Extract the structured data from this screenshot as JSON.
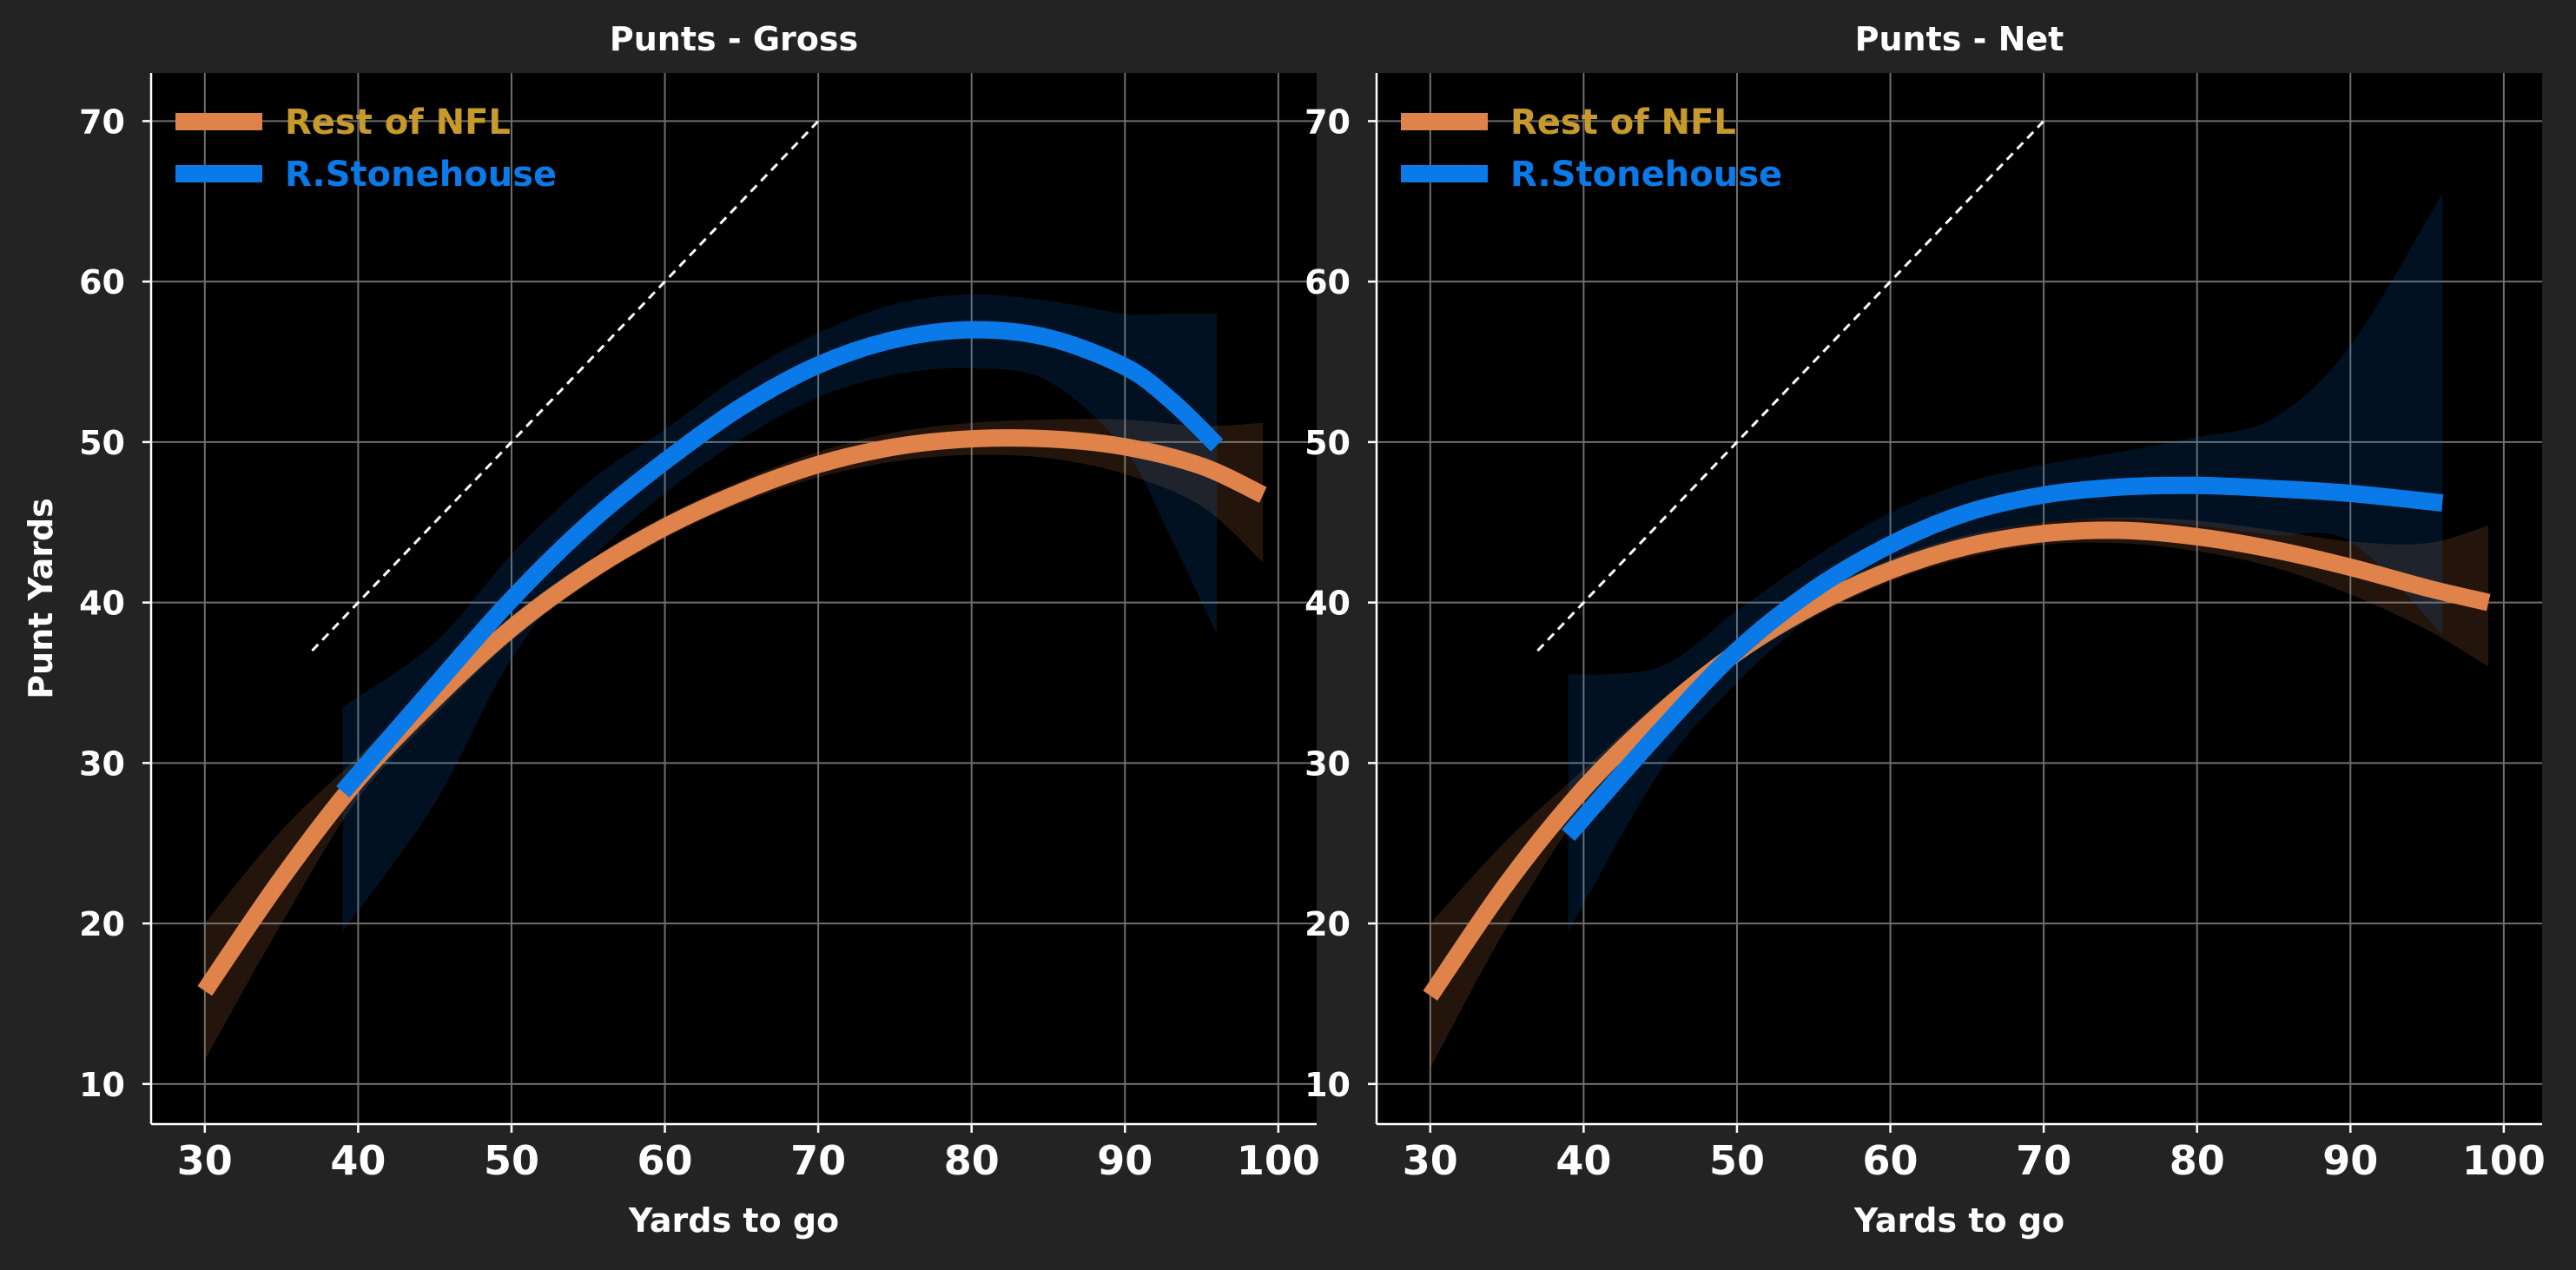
{
  "chart_data": [
    {
      "type": "line",
      "title": "Punts - Gross",
      "xlabel": "Yards to go",
      "ylabel": "Punt Yards",
      "xlim": [
        26.5,
        102.5
      ],
      "ylim": [
        7.5,
        73
      ],
      "xticks": [
        30,
        40,
        50,
        60,
        70,
        80,
        90,
        100
      ],
      "yticks": [
        10,
        20,
        30,
        40,
        50,
        60,
        70
      ],
      "grid": true,
      "legend_position": "top-left",
      "reference_line": {
        "x": [
          37,
          70
        ],
        "y": [
          37,
          70
        ]
      },
      "series": [
        {
          "name": "Rest of NFL",
          "color": "#e0834a",
          "label_color": "#c79a2b",
          "x": [
            30,
            35,
            40,
            45,
            50,
            55,
            60,
            65,
            70,
            75,
            80,
            85,
            90,
            95,
            99
          ],
          "y": [
            15.8,
            22.8,
            29.0,
            34.0,
            38.4,
            41.9,
            44.7,
            46.9,
            48.6,
            49.7,
            50.2,
            50.2,
            49.7,
            48.5,
            46.7
          ],
          "band_lower": [
            11.5,
            20.0,
            27.8,
            33.0,
            37.6,
            41.2,
            44.0,
            46.2,
            47.8,
            48.8,
            49.2,
            49.0,
            48.0,
            46.0,
            42.5
          ],
          "band_upper": [
            20.0,
            25.8,
            30.4,
            35.0,
            39.2,
            42.6,
            45.4,
            47.6,
            49.4,
            50.6,
            51.2,
            51.4,
            51.4,
            51.0,
            51.2
          ]
        },
        {
          "name": "R.Stonehouse",
          "color": "#0a7ae8",
          "label_color": "#0a7ae8",
          "x": [
            39,
            45,
            50,
            55,
            60,
            65,
            70,
            75,
            80,
            85,
            90,
            93,
            96
          ],
          "y": [
            28.2,
            34.8,
            40.2,
            44.9,
            48.8,
            52.2,
            54.8,
            56.4,
            57.0,
            56.5,
            54.7,
            52.6,
            49.8
          ],
          "band_lower": [
            19.5,
            27.5,
            36.5,
            42.5,
            46.8,
            50.2,
            52.8,
            54.2,
            54.6,
            53.8,
            49.5,
            44.0,
            38.0
          ],
          "band_upper": [
            33.5,
            37.5,
            43.0,
            47.5,
            50.8,
            54.2,
            56.8,
            58.6,
            59.2,
            58.8,
            58.0,
            58.0,
            58.0
          ]
        }
      ]
    },
    {
      "type": "line",
      "title": "Punts - Net",
      "xlabel": "Yards to go",
      "ylabel": "",
      "xlim": [
        26.5,
        102.5
      ],
      "ylim": [
        7.5,
        73
      ],
      "xticks": [
        30,
        40,
        50,
        60,
        70,
        80,
        90,
        100
      ],
      "yticks": [
        10,
        20,
        30,
        40,
        50,
        60,
        70
      ],
      "grid": true,
      "legend_position": "top-left",
      "reference_line": {
        "x": [
          37,
          70
        ],
        "y": [
          37,
          70
        ]
      },
      "series": [
        {
          "name": "Rest of NFL",
          "color": "#e0834a",
          "label_color": "#c79a2b",
          "x": [
            30,
            35,
            40,
            45,
            50,
            55,
            60,
            65,
            70,
            75,
            80,
            85,
            90,
            95,
            99
          ],
          "y": [
            15.5,
            22.5,
            28.4,
            33.1,
            36.9,
            39.8,
            42.0,
            43.5,
            44.3,
            44.5,
            44.1,
            43.3,
            42.2,
            40.9,
            40.0
          ],
          "band_lower": [
            11.0,
            19.8,
            27.2,
            32.3,
            36.2,
            39.1,
            41.3,
            42.8,
            43.6,
            43.7,
            43.2,
            42.2,
            40.5,
            38.3,
            36.0
          ],
          "band_upper": [
            20.0,
            25.2,
            29.6,
            33.9,
            37.6,
            40.5,
            42.7,
            44.2,
            45.0,
            45.3,
            45.1,
            44.5,
            43.8,
            43.7,
            44.8
          ]
        },
        {
          "name": "R.Stonehouse",
          "color": "#0a7ae8",
          "label_color": "#0a7ae8",
          "x": [
            39,
            45,
            50,
            55,
            60,
            65,
            70,
            75,
            80,
            85,
            90,
            96
          ],
          "y": [
            25.5,
            32.0,
            37.0,
            40.8,
            43.6,
            45.6,
            46.7,
            47.2,
            47.3,
            47.1,
            46.8,
            46.2
          ],
          "band_lower": [
            19.5,
            29.5,
            35.0,
            39.2,
            42.0,
            44.0,
            45.0,
            45.2,
            44.8,
            44.2,
            43.8,
            38.0
          ],
          "band_upper": [
            35.5,
            36.0,
            39.5,
            42.8,
            45.6,
            47.5,
            48.6,
            49.4,
            50.3,
            51.5,
            56.0,
            65.5
          ]
        }
      ]
    }
  ]
}
